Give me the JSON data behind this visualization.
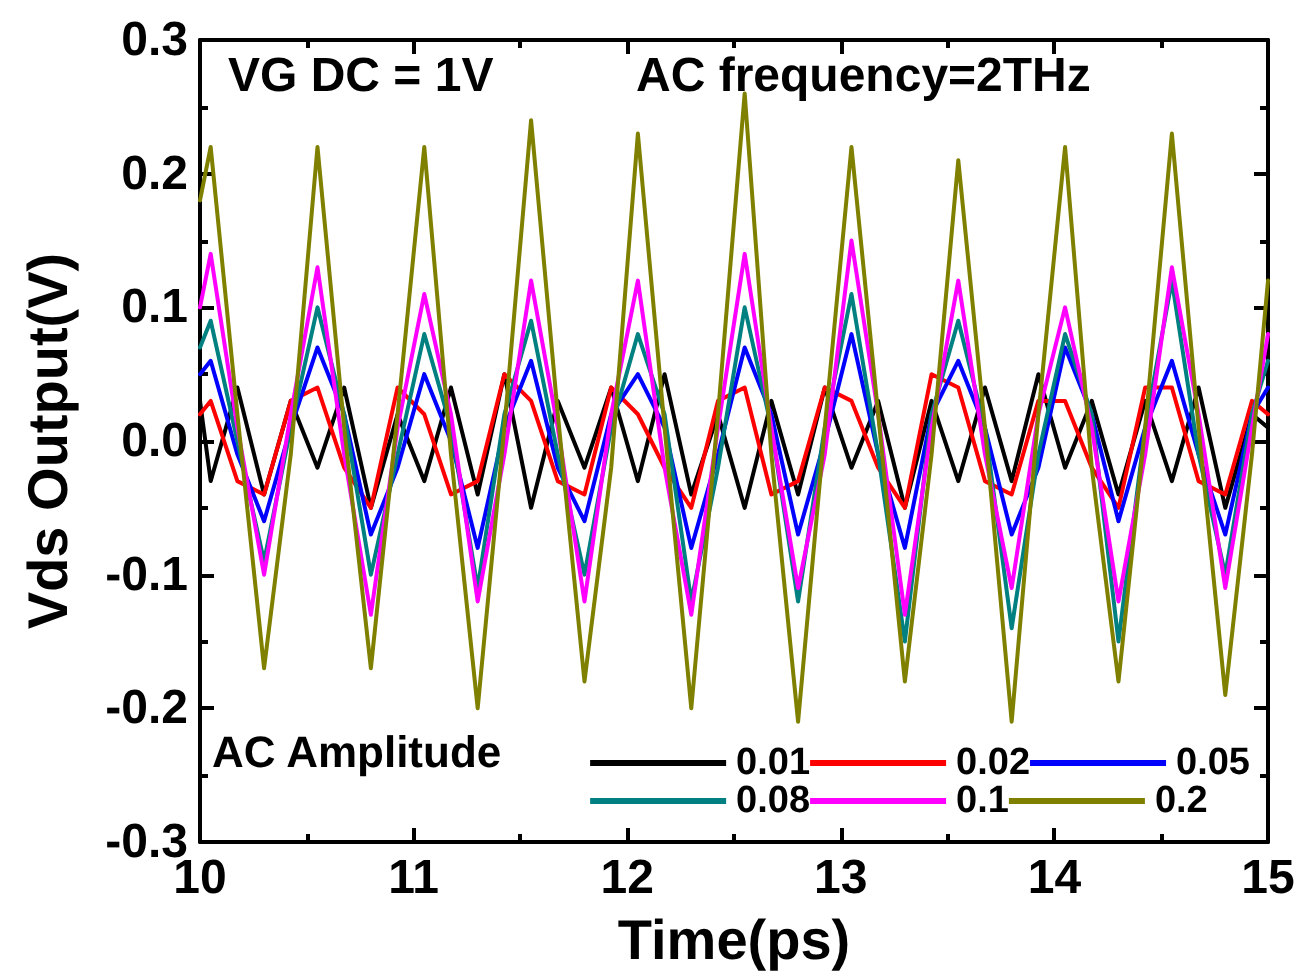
{
  "chart_data": {
    "type": "line",
    "xlabel": "Time(ps)",
    "ylabel": "Vds Output(V)",
    "legend_title": "AC Amplitude",
    "annotations": [
      "VG DC = 1V",
      "AC frequency=2THz"
    ],
    "x": [
      10,
      10.05,
      10.175,
      10.3,
      10.425,
      10.55,
      10.675,
      10.8,
      10.925,
      11.05,
      11.175,
      11.3,
      11.425,
      11.55,
      11.675,
      11.8,
      11.925,
      12.05,
      12.175,
      12.3,
      12.425,
      12.55,
      12.675,
      12.8,
      12.925,
      13.05,
      13.175,
      13.3,
      13.425,
      13.55,
      13.675,
      13.8,
      13.925,
      14.05,
      14.175,
      14.3,
      14.425,
      14.55,
      14.675,
      14.8,
      14.925,
      15
    ],
    "series": [
      {
        "name": "0.01",
        "color": "#000000",
        "values": [
          0.03,
          -0.03,
          0.04,
          -0.04,
          0.03,
          -0.02,
          0.04,
          -0.05,
          0.02,
          -0.03,
          0.04,
          -0.04,
          0.05,
          -0.05,
          0.03,
          -0.02,
          0.04,
          -0.03,
          0.05,
          -0.04,
          0.02,
          -0.05,
          0.03,
          -0.04,
          0.04,
          -0.02,
          0.03,
          -0.05,
          0.03,
          -0.03,
          0.04,
          -0.03,
          0.05,
          -0.02,
          0.03,
          -0.04,
          0.03,
          -0.03,
          0.04,
          -0.05,
          0.02,
          0.01
        ]
      },
      {
        "name": "0.02",
        "color": "#ff0000",
        "values": [
          0.02,
          0.03,
          -0.03,
          -0.04,
          0.03,
          0.04,
          -0.02,
          -0.05,
          0.04,
          0.02,
          -0.04,
          -0.03,
          0.05,
          0.03,
          -0.03,
          -0.04,
          0.04,
          0.02,
          -0.02,
          -0.05,
          0.03,
          0.04,
          -0.04,
          -0.03,
          0.04,
          0.03,
          -0.02,
          -0.05,
          0.05,
          0.04,
          -0.03,
          -0.04,
          0.03,
          0.03,
          -0.02,
          -0.05,
          0.04,
          0.04,
          -0.03,
          -0.04,
          0.03,
          0.02
        ]
      },
      {
        "name": "0.05",
        "color": "#0000ff",
        "values": [
          0.05,
          0.06,
          -0.01,
          -0.06,
          0.01,
          0.07,
          0.02,
          -0.07,
          -0.02,
          0.05,
          0.0,
          -0.08,
          0.01,
          0.06,
          -0.02,
          -0.06,
          0.02,
          0.05,
          0.01,
          -0.08,
          -0.01,
          0.07,
          0.02,
          -0.07,
          0.0,
          0.08,
          -0.01,
          -0.08,
          0.02,
          0.06,
          0.01,
          -0.07,
          -0.02,
          0.07,
          0.02,
          -0.06,
          0.01,
          0.06,
          -0.01,
          -0.07,
          0.02,
          0.04
        ]
      },
      {
        "name": "0.08",
        "color": "#008080",
        "values": [
          0.07,
          0.09,
          0.0,
          -0.09,
          0.01,
          0.1,
          0.02,
          -0.1,
          -0.01,
          0.08,
          0.01,
          -0.11,
          0.02,
          0.09,
          -0.01,
          -0.1,
          0.01,
          0.08,
          0.02,
          -0.12,
          -0.02,
          0.1,
          0.01,
          -0.12,
          0.01,
          0.11,
          -0.01,
          -0.15,
          0.02,
          0.09,
          0.01,
          -0.14,
          -0.01,
          0.08,
          0.02,
          -0.15,
          0.01,
          0.12,
          -0.01,
          -0.1,
          0.02,
          0.06
        ]
      },
      {
        "name": "0.1",
        "color": "#ff00ff",
        "values": [
          0.1,
          0.14,
          0.01,
          -0.1,
          0.02,
          0.13,
          -0.01,
          -0.13,
          0.01,
          0.11,
          0.02,
          -0.12,
          -0.01,
          0.12,
          0.01,
          -0.12,
          0.02,
          0.12,
          -0.02,
          -0.13,
          0.01,
          0.14,
          0.01,
          -0.11,
          -0.01,
          0.15,
          0.02,
          -0.13,
          0.01,
          0.12,
          -0.01,
          -0.11,
          0.02,
          0.1,
          0.01,
          -0.12,
          -0.01,
          0.13,
          0.02,
          -0.11,
          0.01,
          0.08
        ]
      },
      {
        "name": "0.2",
        "color": "#808000",
        "values": [
          0.18,
          0.22,
          0.02,
          -0.17,
          -0.01,
          0.22,
          0.01,
          -0.17,
          0.02,
          0.22,
          -0.01,
          -0.2,
          0.01,
          0.24,
          0.02,
          -0.18,
          -0.02,
          0.23,
          0.01,
          -0.2,
          0.02,
          0.26,
          -0.01,
          -0.21,
          0.01,
          0.22,
          0.02,
          -0.18,
          -0.01,
          0.21,
          0.01,
          -0.21,
          0.02,
          0.22,
          -0.02,
          -0.18,
          0.01,
          0.23,
          0.01,
          -0.19,
          -0.01,
          0.12
        ]
      }
    ],
    "xlim": [
      10,
      15
    ],
    "xticks": [
      10,
      11,
      12,
      13,
      14,
      15
    ],
    "ylim": [
      -0.3,
      0.3
    ],
    "yticks": [
      -0.3,
      -0.2,
      -0.1,
      {
        "value": 0,
        "label": "0.0"
      },
      0.1,
      0.2,
      0.3
    ],
    "legend": "bottom right",
    "grid": false,
    "marker": "none",
    "line_style": "solid"
  }
}
